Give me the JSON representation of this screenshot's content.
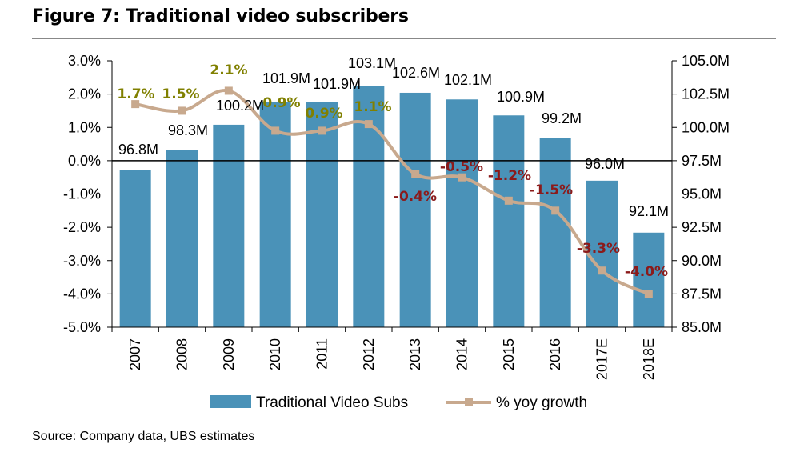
{
  "title": "Figure 7: Traditional video subscribers",
  "source": "Source:  Company data, UBS estimates",
  "colors": {
    "bar": "#4a92b8",
    "line": "#c8a98e",
    "positive_label": "#808000",
    "negative_label": "#8b1a1a"
  },
  "chart_data": {
    "type": "bar",
    "categories": [
      "2007",
      "2008",
      "2009",
      "2010",
      "2011",
      "2012",
      "2013",
      "2014",
      "2015",
      "2016",
      "2017E",
      "2018E"
    ],
    "series": [
      {
        "name": "Traditional Video Subs",
        "type": "bar",
        "axis": "right",
        "values": [
          96.8,
          98.3,
          100.2,
          101.9,
          101.9,
          103.1,
          102.6,
          102.1,
          100.9,
          99.2,
          96.0,
          92.1
        ],
        "labels": [
          "96.8M",
          "98.3M",
          "100.2M",
          "101.9M",
          "101.9M",
          "103.1M",
          "102.6M",
          "102.1M",
          "100.9M",
          "99.2M",
          "96.0M",
          "92.1M"
        ]
      },
      {
        "name": "% yoy growth",
        "type": "line",
        "axis": "left",
        "values": [
          1.7,
          1.5,
          2.1,
          0.9,
          0.9,
          1.1,
          -0.4,
          -0.5,
          -1.2,
          -1.5,
          -3.3,
          -4.0
        ],
        "labels": [
          "1.7%",
          "1.5%",
          "2.1%",
          "0.9%",
          "0.9%",
          "1.1%",
          "-0.4%",
          "-0.5%",
          "-1.2%",
          "-1.5%",
          "-3.3%",
          "-4.0%"
        ]
      }
    ],
    "left_axis": {
      "min": -5.0,
      "max": 3.0,
      "ticks": [
        "3.0%",
        "2.0%",
        "1.0%",
        "0.0%",
        "-1.0%",
        "-2.0%",
        "-3.0%",
        "-4.0%",
        "-5.0%"
      ]
    },
    "right_axis": {
      "min": 85.0,
      "max": 105.0,
      "ticks": [
        "105.0M",
        "102.5M",
        "100.0M",
        "97.5M",
        "95.0M",
        "92.5M",
        "90.0M",
        "87.5M",
        "85.0M"
      ]
    },
    "legend": {
      "position": "bottom",
      "items": [
        "Traditional Video Subs",
        "% yoy growth"
      ]
    },
    "grid": false
  }
}
